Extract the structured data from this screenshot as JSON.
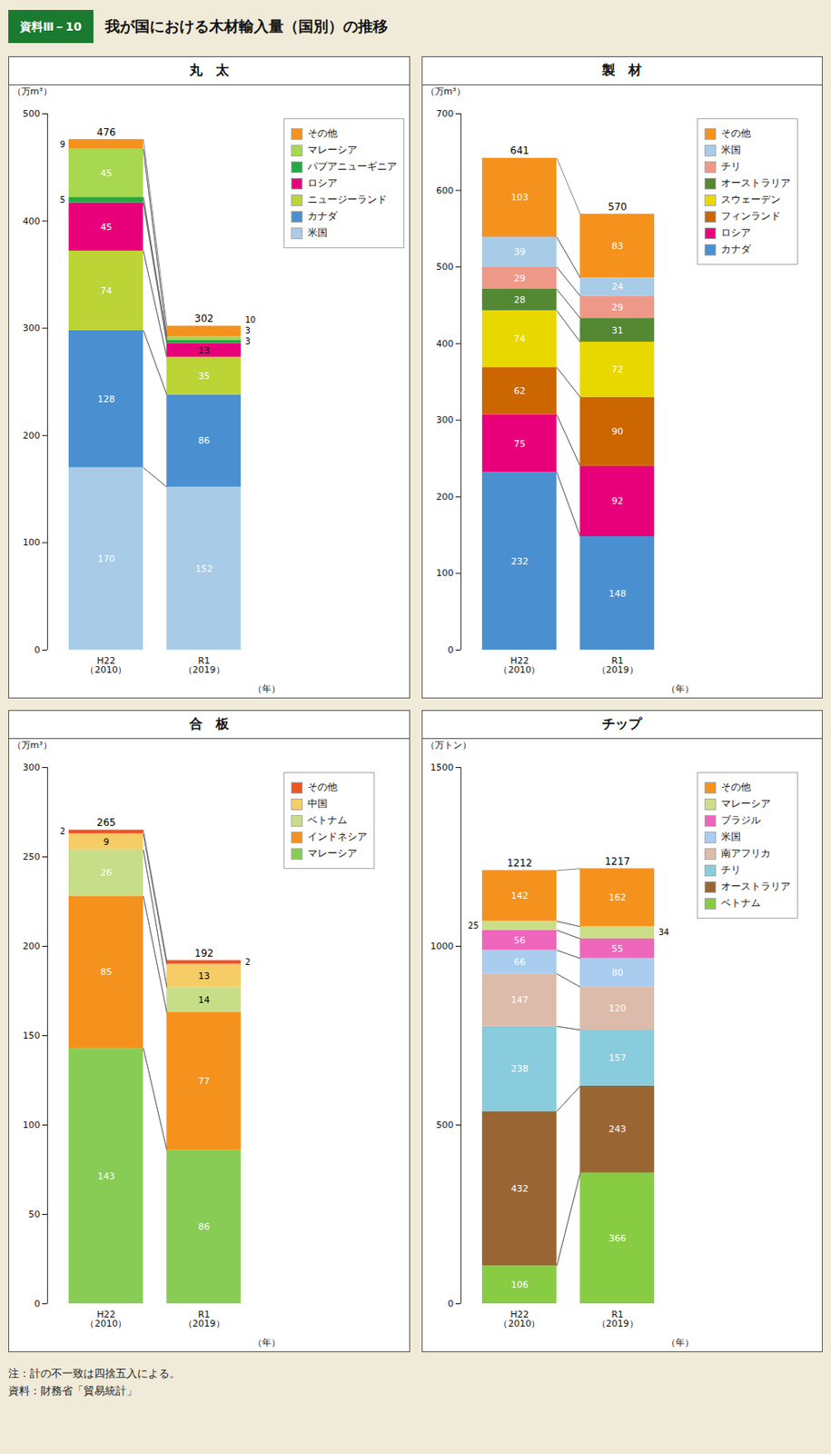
{
  "title": "我が国における木材輸入量（国別）の推移",
  "annotations": [
    "資料Ⅲ－10",
    "注：計の不一致は四捨五入による。\n資料：財務省「貿易統計」"
  ],
  "chart_data": [
    {
      "type": "bar",
      "title": "丸　太",
      "xlabel": "（年）",
      "ylabel": "（万m³）",
      "categories": [
        "H22\n（2010）",
        "R1\n（2019）"
      ],
      "series": [
        {
          "name": "米国",
          "color": "#a8cce8",
          "values": [
            170,
            152
          ]
        },
        {
          "name": "カナダ",
          "color": "#4a90d0",
          "values": [
            128,
            86
          ]
        },
        {
          "name": "ニュージーランド",
          "color": "#bcd435",
          "values": [
            74,
            35
          ]
        },
        {
          "name": "ロシア",
          "color": "#e8007a",
          "values": [
            45,
            13
          ]
        },
        {
          "name": "パプアニューギニア",
          "color": "#22aa44",
          "values": [
            5,
            3
          ]
        },
        {
          "name": "マレーシア",
          "color": "#a8d850",
          "values": [
            45,
            3
          ]
        },
        {
          "name": "その他",
          "color": "#f5921e",
          "values": [
            9,
            10
          ]
        }
      ],
      "totals": [
        476,
        302
      ],
      "ylim": [
        0,
        500
      ],
      "yticks": [
        0,
        100,
        200,
        300,
        400,
        500
      ],
      "stacked": true,
      "data_labels": true,
      "legend": "right"
    },
    {
      "type": "bar",
      "title": "製　材",
      "xlabel": "（年）",
      "ylabel": "（万m³）",
      "categories": [
        "H22\n（2010）",
        "R1\n（2019）"
      ],
      "series": [
        {
          "name": "カナダ",
          "color": "#4a90d0",
          "values": [
            232,
            148
          ]
        },
        {
          "name": "ロシア",
          "color": "#e8007a",
          "values": [
            75,
            92
          ]
        },
        {
          "name": "フィンランド",
          "color": "#cc6600",
          "values": [
            62,
            90
          ]
        },
        {
          "name": "スウェーデン",
          "color": "#e8d800",
          "values": [
            74,
            72
          ]
        },
        {
          "name": "オーストラリア",
          "color": "#558833",
          "values": [
            28,
            31
          ]
        },
        {
          "name": "チリ",
          "color": "#ee9988",
          "values": [
            29,
            29
          ]
        },
        {
          "name": "米国",
          "color": "#a8cce8",
          "values": [
            39,
            24
          ]
        },
        {
          "name": "その他",
          "color": "#f5921e",
          "values": [
            103,
            83
          ]
        }
      ],
      "totals": [
        641,
        570
      ],
      "ylim": [
        0,
        700
      ],
      "yticks": [
        0,
        100,
        200,
        300,
        400,
        500,
        600,
        700
      ],
      "stacked": true,
      "data_labels": true,
      "legend": "right"
    },
    {
      "type": "bar",
      "title": "合　板",
      "xlabel": "（年）",
      "ylabel": "（万m³）",
      "categories": [
        "H22\n（2010）",
        "R1\n（2019）"
      ],
      "series": [
        {
          "name": "マレーシア",
          "color": "#88cc55",
          "values": [
            143,
            86
          ]
        },
        {
          "name": "インドネシア",
          "color": "#f5921e",
          "values": [
            85,
            77
          ]
        },
        {
          "name": "ベトナム",
          "color": "#c8dd88",
          "values": [
            26,
            14
          ]
        },
        {
          "name": "中国",
          "color": "#f5cc66",
          "values": [
            9,
            13
          ]
        },
        {
          "name": "その他",
          "color": "#ee5522",
          "values": [
            2,
            2
          ]
        }
      ],
      "totals": [
        265,
        192
      ],
      "ylim": [
        0,
        300
      ],
      "yticks": [
        0,
        50,
        100,
        150,
        200,
        250,
        300
      ],
      "stacked": true,
      "data_labels": true,
      "legend": "right"
    },
    {
      "type": "bar",
      "title": "チップ",
      "xlabel": "（年）",
      "ylabel": "（万トン）",
      "categories": [
        "H22\n（2010）",
        "R1\n（2019）"
      ],
      "series": [
        {
          "name": "ベトナム",
          "color": "#88cc44",
          "values": [
            106,
            366
          ]
        },
        {
          "name": "オーストラリア",
          "color": "#996633",
          "values": [
            432,
            243
          ]
        },
        {
          "name": "チリ",
          "color": "#88ccdd",
          "values": [
            238,
            157
          ]
        },
        {
          "name": "南アフリカ",
          "color": "#ddbbaa",
          "values": [
            147,
            120
          ]
        },
        {
          "name": "米国",
          "color": "#aaccee",
          "values": [
            66,
            80
          ]
        },
        {
          "name": "ブラジル",
          "color": "#ee66bb",
          "values": [
            56,
            55
          ]
        },
        {
          "name": "マレーシア",
          "color": "#ccdd88",
          "values": [
            25,
            34
          ]
        },
        {
          "name": "その他",
          "color": "#f5921e",
          "values": [
            142,
            162
          ]
        }
      ],
      "totals": [
        1212,
        1217
      ],
      "ylim": [
        0,
        1500
      ],
      "yticks": [
        0,
        500,
        1000,
        1500
      ],
      "stacked": true,
      "data_labels": true,
      "legend": "right"
    }
  ]
}
